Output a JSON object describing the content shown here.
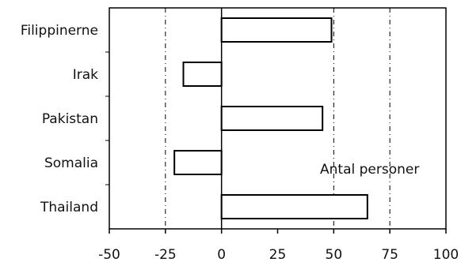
{
  "chart_data": {
    "type": "bar",
    "orientation": "horizontal",
    "categories": [
      "Filippinerne",
      "Irak",
      "Pakistan",
      "Somalia",
      "Thailand"
    ],
    "values": [
      49,
      -17,
      45,
      -21,
      65
    ],
    "xlim": [
      -50,
      100
    ],
    "x_ticks": [
      -50,
      -25,
      0,
      25,
      50,
      75,
      100
    ],
    "x_tick_labels": [
      "-50",
      "-25",
      "0",
      "25",
      "50",
      "75",
      "100"
    ],
    "gridlines": [
      -25,
      50,
      75
    ],
    "annotation": "Antal personer",
    "bar_fill": "#ffffff",
    "bar_stroke": "#000000",
    "grid": true
  }
}
